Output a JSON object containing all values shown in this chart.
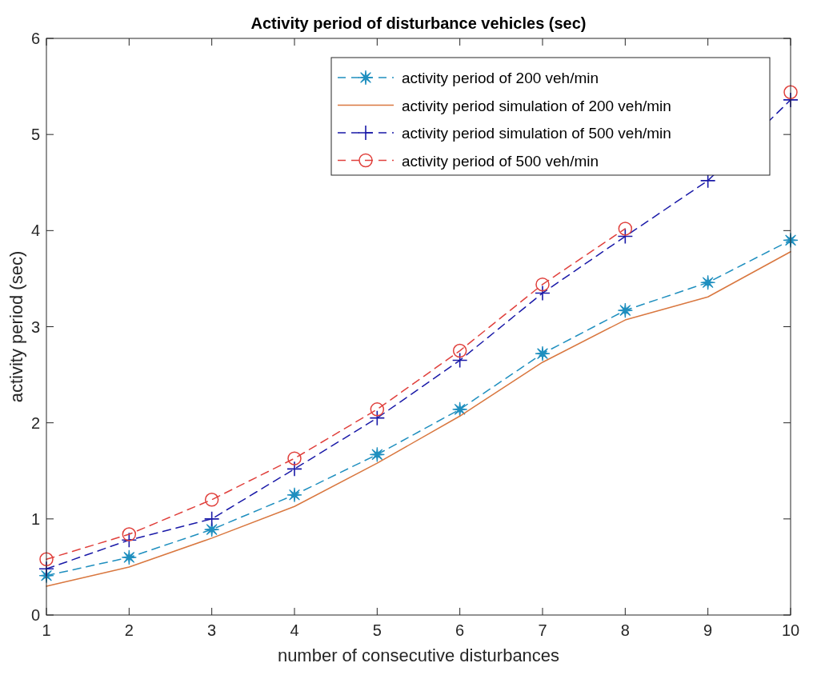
{
  "chart_data": {
    "type": "line",
    "title": "Activity period of disturbance vehicles (sec)",
    "xlabel": "number of consecutive disturbances",
    "ylabel": "activity period (sec)",
    "x": [
      1,
      2,
      3,
      4,
      5,
      6,
      7,
      8,
      9,
      10
    ],
    "xlim": [
      1,
      10
    ],
    "xticks": [
      1,
      2,
      3,
      4,
      5,
      6,
      7,
      8,
      9,
      10
    ],
    "ylim": [
      0,
      6
    ],
    "yticks": [
      0,
      1,
      2,
      3,
      4,
      5,
      6
    ],
    "grid": false,
    "legend": "top right",
    "series": [
      {
        "name": "activity period of 200 veh/min",
        "color": "#1f8fbf",
        "marker": "star",
        "line_style": "dashed",
        "values": [
          0.41,
          0.6,
          0.89,
          1.25,
          1.67,
          2.14,
          2.72,
          3.17,
          3.46,
          3.9
        ]
      },
      {
        "name": "activity period simulation of 200 veh/min",
        "color": "#d9773f",
        "marker": "none",
        "line_style": "solid",
        "values": [
          0.3,
          0.5,
          0.8,
          1.13,
          1.58,
          2.07,
          2.63,
          3.07,
          3.31,
          3.78
        ]
      },
      {
        "name": "activity period simulation of 500 veh/min",
        "color": "#1a1aa8",
        "marker": "cross",
        "line_style": "dashed",
        "values": [
          0.48,
          0.78,
          1.0,
          1.52,
          2.05,
          2.65,
          3.35,
          3.94,
          4.52,
          5.36
        ]
      },
      {
        "name": "activity period of 500 veh/min",
        "color": "#e0403c",
        "marker": "circle",
        "line_style": "dashed",
        "values": [
          0.58,
          0.84,
          1.2,
          1.63,
          2.14,
          2.75,
          3.44,
          4.02,
          null,
          5.44
        ]
      }
    ]
  }
}
